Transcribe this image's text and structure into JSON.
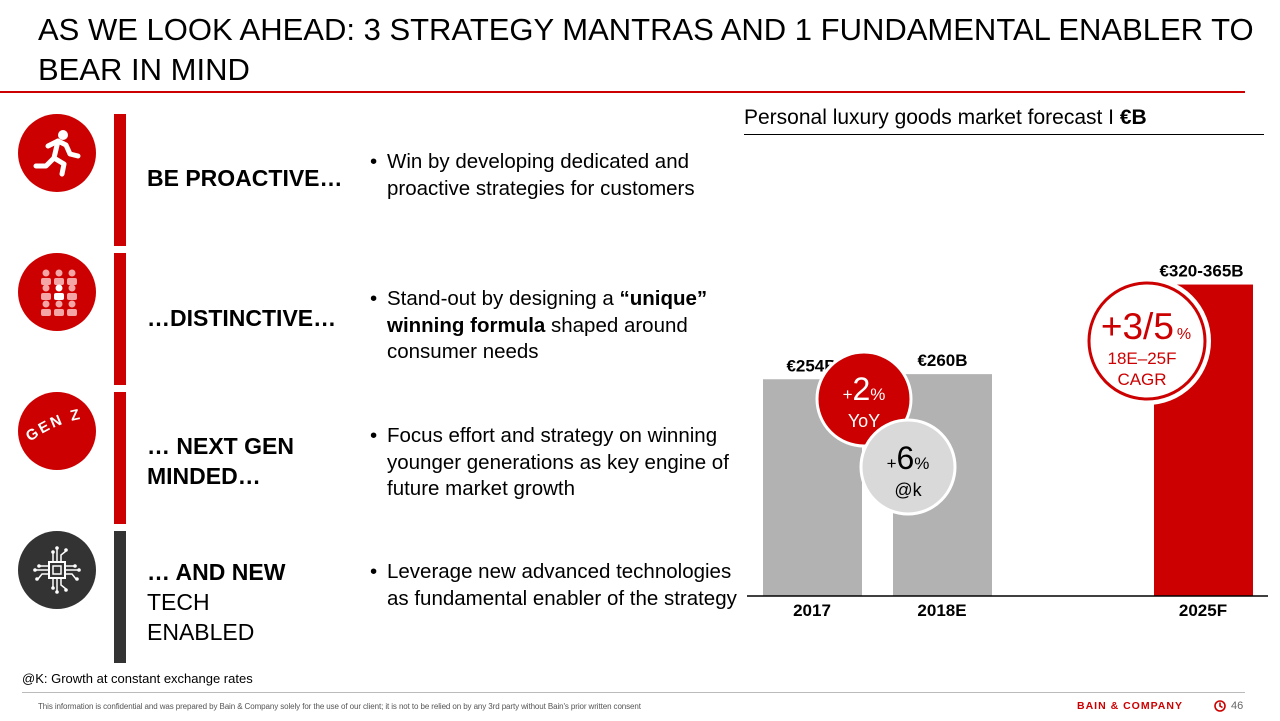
{
  "title": "AS WE LOOK AHEAD: 3 STRATEGY MANTRAS AND 1 FUNDAMENTAL ENABLER TO BEAR IN MIND",
  "rows": [
    {
      "icon": "runner-icon",
      "mantra_bold": "BE PROACTIVE…",
      "mantra_rest": "",
      "bullet": {
        "pre": "Win by developing dedicated and proactive strategies for customers",
        "bold": "",
        "post": ""
      }
    },
    {
      "icon": "crowd-icon",
      "mantra_bold": "…DISTINCTIVE…",
      "mantra_rest": "",
      "bullet": {
        "pre": "Stand-out by designing a ",
        "bold": "“unique” winning formula",
        "post": " shaped around consumer needs"
      }
    },
    {
      "icon": "gen-z-icon",
      "icon_text": "GEN Z",
      "mantra_bold": "… NEXT GEN MINDED…",
      "mantra_rest": "",
      "bullet": {
        "pre": "Focus effort and strategy on winning younger generations as key engine of future market growth",
        "bold": "",
        "post": ""
      }
    },
    {
      "icon": "chip-icon",
      "mantra_bold": "… AND NEW",
      "mantra_rest": "TECH ENABLED",
      "bullet": {
        "pre": "Leverage new advanced technologies as fundamental enabler of the strategy",
        "bold": "",
        "post": ""
      }
    }
  ],
  "chart_title_pre": "Personal luxury goods market forecast I ",
  "chart_title_bold": "€B",
  "chart_data": {
    "type": "bar",
    "title": "Personal luxury goods market forecast I €B",
    "categories": [
      "2017",
      "2018E",
      "2025F"
    ],
    "values": [
      254,
      260,
      342.5
    ],
    "range_2025F": [
      320,
      365
    ],
    "data_labels": [
      "€254B",
      "€260B",
      "€320-365B"
    ],
    "colors": [
      "#b2b2b2",
      "#b2b2b2",
      "#cc0000"
    ],
    "annotations": [
      {
        "big": "+2",
        "small": "%",
        "sub": "YoY",
        "style": "red"
      },
      {
        "big": "+6",
        "small": "%",
        "sub": "@k",
        "style": "grey"
      },
      {
        "big": "+3/5",
        "small": "%",
        "sub": "18E–25F",
        "sub2": "CAGR",
        "style": "white"
      }
    ]
  },
  "footnote": "@K: Growth at constant exchange rates",
  "confidential": "This information is confidential and was prepared by Bain & Company solely for the use of our client; it is not to be relied on by any 3rd party without Bain's prior written consent",
  "brand": "BAIN & COMPANY",
  "page_number": "46",
  "accent": "#cc0000",
  "dark": "#333333"
}
